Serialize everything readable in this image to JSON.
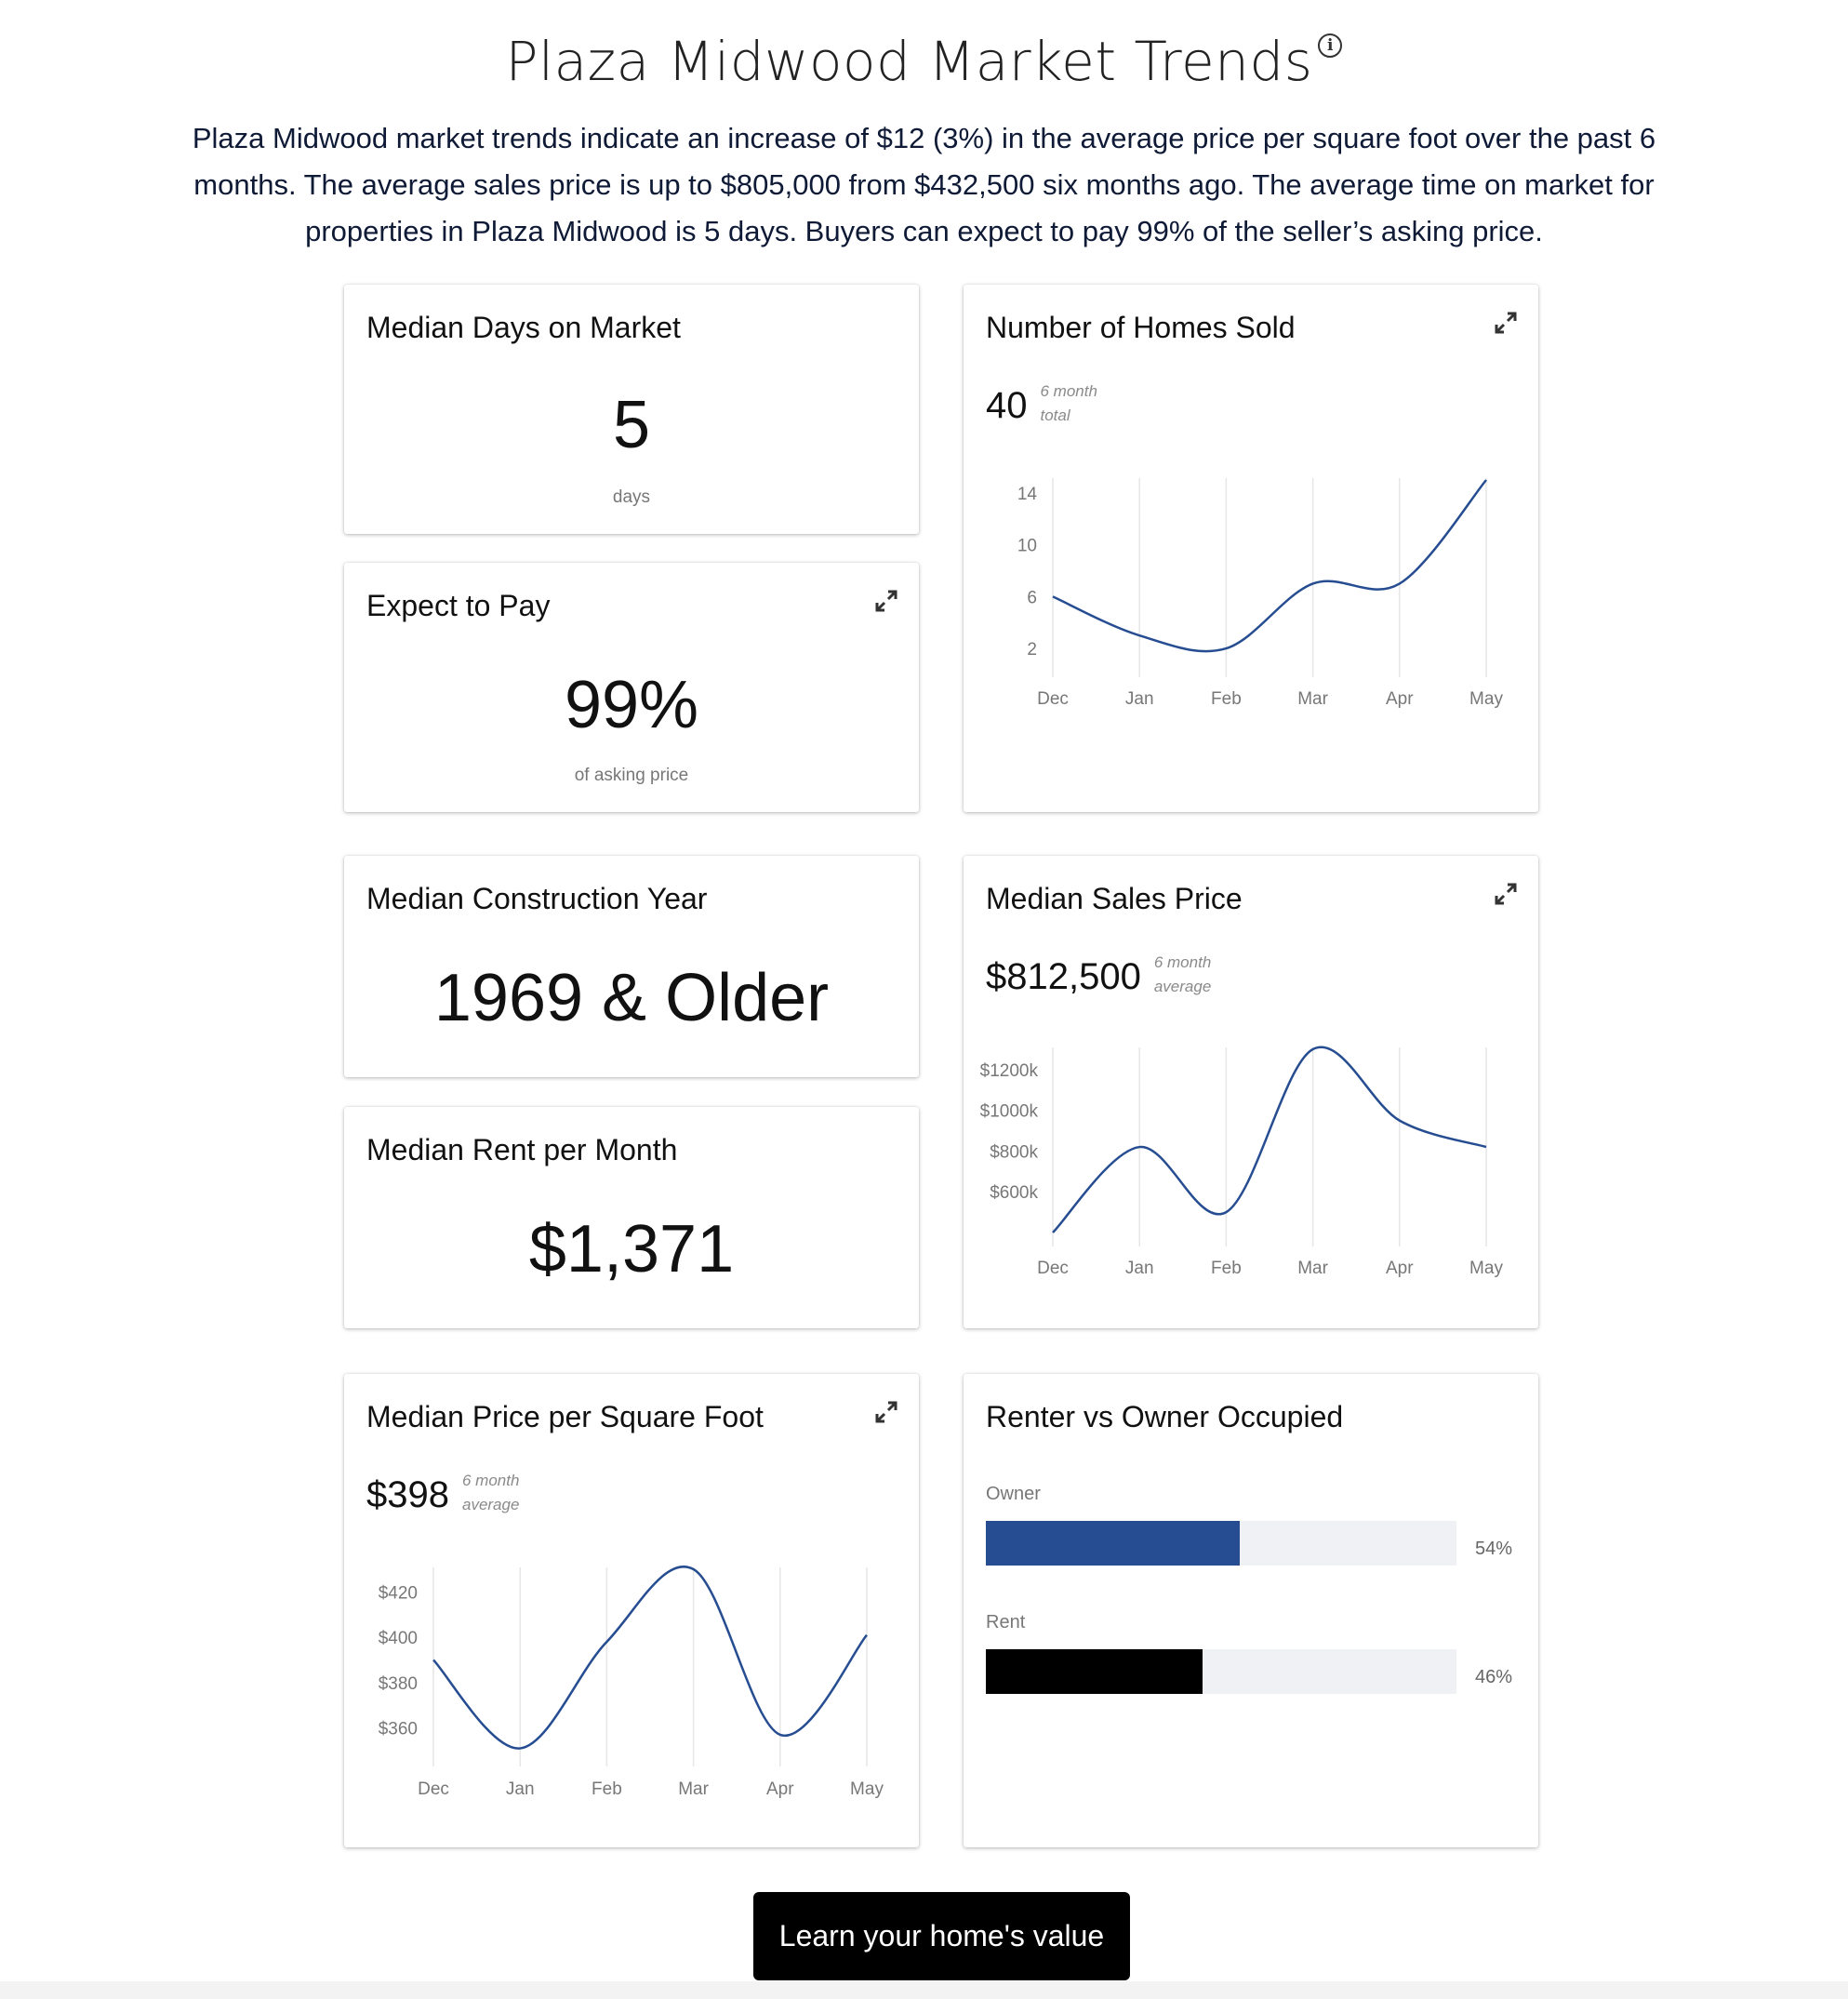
{
  "header": {
    "title": "Plaza Midwood Market Trends",
    "info_icon": "info-icon",
    "intro": "Plaza Midwood market trends indicate an increase of $12 (3%) in the average price per square foot over the past 6 months. The average sales price is up to $805,000 from $432,500 six months ago. The average time on market for properties in Plaza Midwood is 5 days. Buyers can expect to pay 99% of the seller’s asking price."
  },
  "cards": {
    "days_on_market": {
      "title": "Median Days on Market",
      "value": "5",
      "unit": "days"
    },
    "expect_to_pay": {
      "title": "Expect to Pay",
      "value": "99%",
      "unit": "of asking price",
      "icon": "expand-icon"
    },
    "construction_year": {
      "title": "Median Construction Year",
      "value": "1969 & Older"
    },
    "rent_per_month": {
      "title": "Median Rent per Month",
      "value": "$1,371"
    },
    "homes_sold": {
      "title": "Number of Homes Sold",
      "value": "40",
      "note_line1": "6 month",
      "note_line2": "total",
      "icon": "expand-icon"
    },
    "sales_price": {
      "title": "Median Sales Price",
      "value": "$812,500",
      "note_line1": "6 month",
      "note_line2": "average",
      "icon": "expand-icon"
    },
    "price_sqft": {
      "title": "Median Price per Square Foot",
      "value": "$398",
      "note_line1": "6 month",
      "note_line2": "average",
      "icon": "expand-icon"
    },
    "occupancy": {
      "title": "Renter vs Owner Occupied",
      "bars": [
        {
          "label": "Owner",
          "value": 54,
          "pct_label": "54%",
          "color": "#264d91"
        },
        {
          "label": "Rent",
          "value": 46,
          "pct_label": "46%",
          "color": "#000000"
        }
      ]
    }
  },
  "cta": {
    "label": "Learn your home's value"
  },
  "chart_data": [
    {
      "id": "homes_sold",
      "type": "line",
      "title": "Number of Homes Sold",
      "categories": [
        "Dec",
        "Jan",
        "Feb",
        "Mar",
        "Apr",
        "May"
      ],
      "series": [
        {
          "values": [
            6,
            3,
            2,
            7,
            7,
            15
          ]
        }
      ],
      "yticks": [
        2,
        6,
        10,
        14
      ],
      "yticklabels": [
        "2",
        "6",
        "10",
        "14"
      ],
      "ylim": [
        1,
        15
      ],
      "grid": "vertical",
      "color": "#264d91"
    },
    {
      "id": "sales_price",
      "type": "line",
      "title": "Median Sales Price",
      "categories": [
        "Dec",
        "Jan",
        "Feb",
        "Mar",
        "Apr",
        "May"
      ],
      "series": [
        {
          "values": [
            400,
            820,
            500,
            1300,
            950,
            820
          ]
        }
      ],
      "yticks": [
        600,
        800,
        1000,
        1200
      ],
      "yticklabels": [
        "$600k",
        "$800k",
        "$1000k",
        "$1200k"
      ],
      "ylim": [
        400,
        1300
      ],
      "grid": "vertical",
      "color": "#264d91"
    },
    {
      "id": "price_sqft",
      "type": "line",
      "title": "Median Price per Square Foot",
      "categories": [
        "Dec",
        "Jan",
        "Feb",
        "Mar",
        "Apr",
        "May"
      ],
      "series": [
        {
          "values": [
            390,
            351,
            398,
            430,
            357,
            401
          ]
        }
      ],
      "yticks": [
        360,
        380,
        400,
        420
      ],
      "yticklabels": [
        "$360",
        "$380",
        "$400",
        "$420"
      ],
      "ylim": [
        350,
        430
      ],
      "grid": "vertical",
      "color": "#264d91"
    }
  ]
}
